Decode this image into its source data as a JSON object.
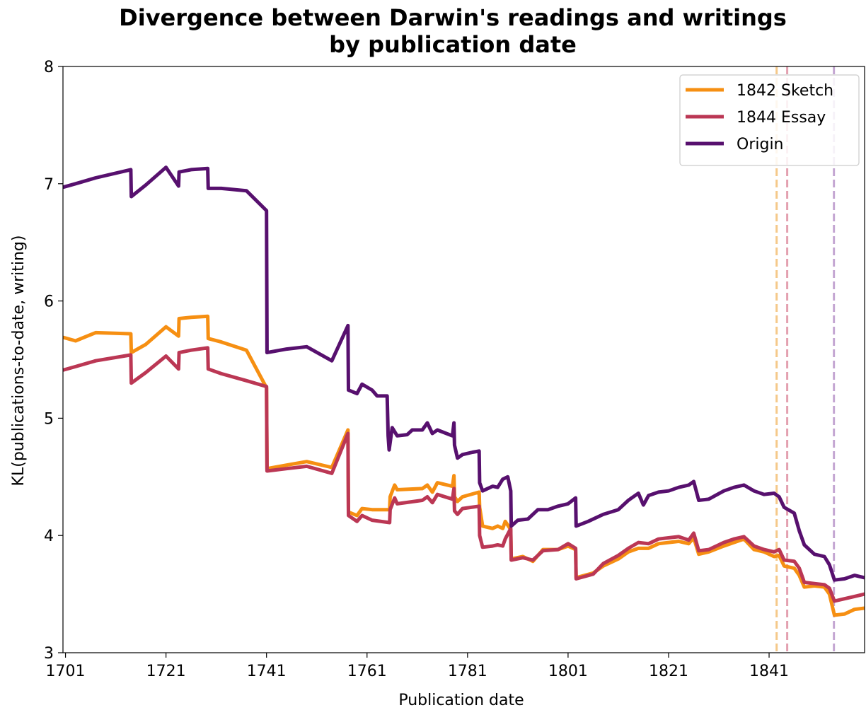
{
  "chart_data": {
    "type": "line",
    "title_lines": [
      "Divergence between Darwin's readings and writings",
      "by publication date"
    ],
    "xlabel": "Publication date",
    "ylabel": "KL(publications-to-date, writing)",
    "xlim": [
      1700.5,
      1860
    ],
    "ylim": [
      3,
      8
    ],
    "xticks": [
      1701,
      1721,
      1741,
      1761,
      1781,
      1801,
      1821,
      1841
    ],
    "yticks": [
      3,
      4,
      5,
      6,
      7,
      8
    ],
    "grid": false,
    "legend_position": "top-right",
    "vlines": [
      {
        "x": 1842.5,
        "color": "#f5c98a"
      },
      {
        "x": 1844.6,
        "color": "#e3a0b0"
      },
      {
        "x": 1853.9,
        "color": "#c4a6d2"
      }
    ],
    "series": [
      {
        "name": "1842 Sketch",
        "color": "#f68f12",
        "points": [
          [
            1700.5,
            5.69
          ],
          [
            1703,
            5.66
          ],
          [
            1707,
            5.73
          ],
          [
            1714,
            5.72
          ],
          [
            1714.1,
            5.56
          ],
          [
            1717,
            5.63
          ],
          [
            1721,
            5.78
          ],
          [
            1723.5,
            5.7
          ],
          [
            1723.6,
            5.85
          ],
          [
            1726,
            5.86
          ],
          [
            1729.3,
            5.87
          ],
          [
            1729.4,
            5.68
          ],
          [
            1732,
            5.65
          ],
          [
            1737,
            5.58
          ],
          [
            1741,
            5.26
          ],
          [
            1741.1,
            4.57
          ],
          [
            1745,
            4.6
          ],
          [
            1749,
            4.63
          ],
          [
            1754,
            4.58
          ],
          [
            1757.2,
            4.9
          ],
          [
            1757.3,
            4.2
          ],
          [
            1759,
            4.17
          ],
          [
            1760,
            4.23
          ],
          [
            1762,
            4.22
          ],
          [
            1765.5,
            4.22
          ],
          [
            1765.6,
            4.33
          ],
          [
            1766.5,
            4.43
          ],
          [
            1767,
            4.39
          ],
          [
            1772,
            4.4
          ],
          [
            1773,
            4.43
          ],
          [
            1774,
            4.37
          ],
          [
            1775,
            4.45
          ],
          [
            1778,
            4.42
          ],
          [
            1778.3,
            4.51
          ],
          [
            1778.4,
            4.33
          ],
          [
            1779,
            4.29
          ],
          [
            1780,
            4.33
          ],
          [
            1783.3,
            4.37
          ],
          [
            1783.4,
            4.24
          ],
          [
            1784,
            4.08
          ],
          [
            1786,
            4.06
          ],
          [
            1787,
            4.08
          ],
          [
            1788,
            4.06
          ],
          [
            1788.5,
            4.12
          ],
          [
            1789.6,
            4.05
          ],
          [
            1789.7,
            3.8
          ],
          [
            1792,
            3.82
          ],
          [
            1794,
            3.78
          ],
          [
            1796,
            3.88
          ],
          [
            1799,
            3.88
          ],
          [
            1801,
            3.91
          ],
          [
            1802.5,
            3.88
          ],
          [
            1802.6,
            3.64
          ],
          [
            1806,
            3.68
          ],
          [
            1808,
            3.74
          ],
          [
            1811,
            3.8
          ],
          [
            1813,
            3.86
          ],
          [
            1815,
            3.89
          ],
          [
            1817,
            3.89
          ],
          [
            1819,
            3.93
          ],
          [
            1821,
            3.94
          ],
          [
            1823,
            3.95
          ],
          [
            1825,
            3.93
          ],
          [
            1826,
            3.98
          ],
          [
            1827,
            3.84
          ],
          [
            1829,
            3.86
          ],
          [
            1832,
            3.91
          ],
          [
            1834,
            3.94
          ],
          [
            1836,
            3.97
          ],
          [
            1838,
            3.88
          ],
          [
            1840,
            3.86
          ],
          [
            1842,
            3.82
          ],
          [
            1843,
            3.83
          ],
          [
            1844,
            3.74
          ],
          [
            1846,
            3.72
          ],
          [
            1847,
            3.66
          ],
          [
            1848,
            3.56
          ],
          [
            1850,
            3.57
          ],
          [
            1852,
            3.56
          ],
          [
            1853,
            3.5
          ],
          [
            1854,
            3.32
          ],
          [
            1856,
            3.33
          ],
          [
            1858,
            3.37
          ],
          [
            1860,
            3.38
          ]
        ]
      },
      {
        "name": "1844 Essay",
        "color": "#bb3754",
        "points": [
          [
            1700.5,
            5.41
          ],
          [
            1703,
            5.44
          ],
          [
            1707,
            5.49
          ],
          [
            1714,
            5.54
          ],
          [
            1714.1,
            5.3
          ],
          [
            1717,
            5.39
          ],
          [
            1721,
            5.53
          ],
          [
            1723.5,
            5.42
          ],
          [
            1723.6,
            5.56
          ],
          [
            1726,
            5.58
          ],
          [
            1729.3,
            5.6
          ],
          [
            1729.4,
            5.42
          ],
          [
            1732,
            5.38
          ],
          [
            1737,
            5.32
          ],
          [
            1741,
            5.27
          ],
          [
            1741.1,
            4.55
          ],
          [
            1745,
            4.57
          ],
          [
            1749,
            4.59
          ],
          [
            1754,
            4.53
          ],
          [
            1757.2,
            4.87
          ],
          [
            1757.3,
            4.17
          ],
          [
            1759,
            4.12
          ],
          [
            1760,
            4.17
          ],
          [
            1762,
            4.13
          ],
          [
            1765.5,
            4.11
          ],
          [
            1765.6,
            4.22
          ],
          [
            1766.5,
            4.32
          ],
          [
            1767,
            4.27
          ],
          [
            1772,
            4.3
          ],
          [
            1773,
            4.33
          ],
          [
            1774,
            4.28
          ],
          [
            1775,
            4.35
          ],
          [
            1778,
            4.31
          ],
          [
            1778.3,
            4.4
          ],
          [
            1778.4,
            4.21
          ],
          [
            1779,
            4.18
          ],
          [
            1780,
            4.23
          ],
          [
            1783.3,
            4.25
          ],
          [
            1783.4,
            4.0
          ],
          [
            1784,
            3.9
          ],
          [
            1786,
            3.91
          ],
          [
            1787,
            3.92
          ],
          [
            1788,
            3.91
          ],
          [
            1788.5,
            3.97
          ],
          [
            1789.6,
            4.06
          ],
          [
            1789.7,
            3.79
          ],
          [
            1792,
            3.81
          ],
          [
            1794,
            3.79
          ],
          [
            1796,
            3.87
          ],
          [
            1799,
            3.88
          ],
          [
            1801,
            3.93
          ],
          [
            1802.5,
            3.89
          ],
          [
            1802.6,
            3.63
          ],
          [
            1806,
            3.67
          ],
          [
            1808,
            3.76
          ],
          [
            1811,
            3.83
          ],
          [
            1813,
            3.89
          ],
          [
            1815,
            3.94
          ],
          [
            1817,
            3.93
          ],
          [
            1819,
            3.97
          ],
          [
            1821,
            3.98
          ],
          [
            1823,
            3.99
          ],
          [
            1825,
            3.96
          ],
          [
            1826,
            4.02
          ],
          [
            1827,
            3.87
          ],
          [
            1829,
            3.88
          ],
          [
            1832,
            3.94
          ],
          [
            1834,
            3.97
          ],
          [
            1836,
            3.99
          ],
          [
            1838,
            3.91
          ],
          [
            1840,
            3.88
          ],
          [
            1842,
            3.86
          ],
          [
            1843,
            3.88
          ],
          [
            1844,
            3.79
          ],
          [
            1846,
            3.78
          ],
          [
            1847,
            3.72
          ],
          [
            1848,
            3.6
          ],
          [
            1850,
            3.59
          ],
          [
            1852,
            3.58
          ],
          [
            1853,
            3.55
          ],
          [
            1854,
            3.44
          ],
          [
            1856,
            3.46
          ],
          [
            1858,
            3.48
          ],
          [
            1860,
            3.5
          ]
        ]
      },
      {
        "name": "Origin",
        "color": "#57106e",
        "points": [
          [
            1700.5,
            6.97
          ],
          [
            1703,
            7.0
          ],
          [
            1707,
            7.05
          ],
          [
            1714,
            7.12
          ],
          [
            1714.1,
            6.89
          ],
          [
            1717,
            6.99
          ],
          [
            1721,
            7.14
          ],
          [
            1723.5,
            6.98
          ],
          [
            1723.6,
            7.1
          ],
          [
            1726,
            7.12
          ],
          [
            1729.3,
            7.13
          ],
          [
            1729.4,
            6.96
          ],
          [
            1732,
            6.96
          ],
          [
            1737,
            6.94
          ],
          [
            1741,
            6.77
          ],
          [
            1741.1,
            5.56
          ],
          [
            1745,
            5.59
          ],
          [
            1749,
            5.61
          ],
          [
            1754,
            5.49
          ],
          [
            1757.2,
            5.79
          ],
          [
            1757.3,
            5.24
          ],
          [
            1759,
            5.21
          ],
          [
            1760,
            5.29
          ],
          [
            1762,
            5.24
          ],
          [
            1763,
            5.19
          ],
          [
            1765,
            5.19
          ],
          [
            1765.2,
            4.85
          ],
          [
            1765.4,
            4.73
          ],
          [
            1766,
            4.92
          ],
          [
            1767,
            4.85
          ],
          [
            1769,
            4.86
          ],
          [
            1770,
            4.9
          ],
          [
            1772,
            4.9
          ],
          [
            1773,
            4.96
          ],
          [
            1774,
            4.87
          ],
          [
            1775,
            4.9
          ],
          [
            1778,
            4.85
          ],
          [
            1778.3,
            4.96
          ],
          [
            1778.4,
            4.77
          ],
          [
            1779,
            4.66
          ],
          [
            1780,
            4.69
          ],
          [
            1782,
            4.71
          ],
          [
            1783.3,
            4.72
          ],
          [
            1783.4,
            4.45
          ],
          [
            1784,
            4.38
          ],
          [
            1786,
            4.42
          ],
          [
            1787,
            4.41
          ],
          [
            1788,
            4.48
          ],
          [
            1789,
            4.5
          ],
          [
            1789.6,
            4.38
          ],
          [
            1789.7,
            4.08
          ],
          [
            1791,
            4.13
          ],
          [
            1793,
            4.14
          ],
          [
            1795,
            4.22
          ],
          [
            1797,
            4.22
          ],
          [
            1799,
            4.25
          ],
          [
            1801,
            4.27
          ],
          [
            1802.5,
            4.32
          ],
          [
            1802.6,
            4.08
          ],
          [
            1805,
            4.12
          ],
          [
            1808,
            4.18
          ],
          [
            1811,
            4.22
          ],
          [
            1813,
            4.3
          ],
          [
            1815,
            4.36
          ],
          [
            1816,
            4.26
          ],
          [
            1817,
            4.34
          ],
          [
            1819,
            4.37
          ],
          [
            1821,
            4.38
          ],
          [
            1823,
            4.41
          ],
          [
            1825,
            4.43
          ],
          [
            1826,
            4.46
          ],
          [
            1827,
            4.3
          ],
          [
            1829,
            4.31
          ],
          [
            1832,
            4.38
          ],
          [
            1834,
            4.41
          ],
          [
            1836,
            4.43
          ],
          [
            1838,
            4.38
          ],
          [
            1840,
            4.35
          ],
          [
            1842,
            4.36
          ],
          [
            1843,
            4.33
          ],
          [
            1844,
            4.24
          ],
          [
            1846,
            4.19
          ],
          [
            1847,
            4.04
          ],
          [
            1848,
            3.92
          ],
          [
            1850,
            3.84
          ],
          [
            1852,
            3.82
          ],
          [
            1853,
            3.75
          ],
          [
            1854,
            3.62
          ],
          [
            1856,
            3.63
          ],
          [
            1858,
            3.66
          ],
          [
            1860,
            3.64
          ]
        ]
      }
    ]
  }
}
